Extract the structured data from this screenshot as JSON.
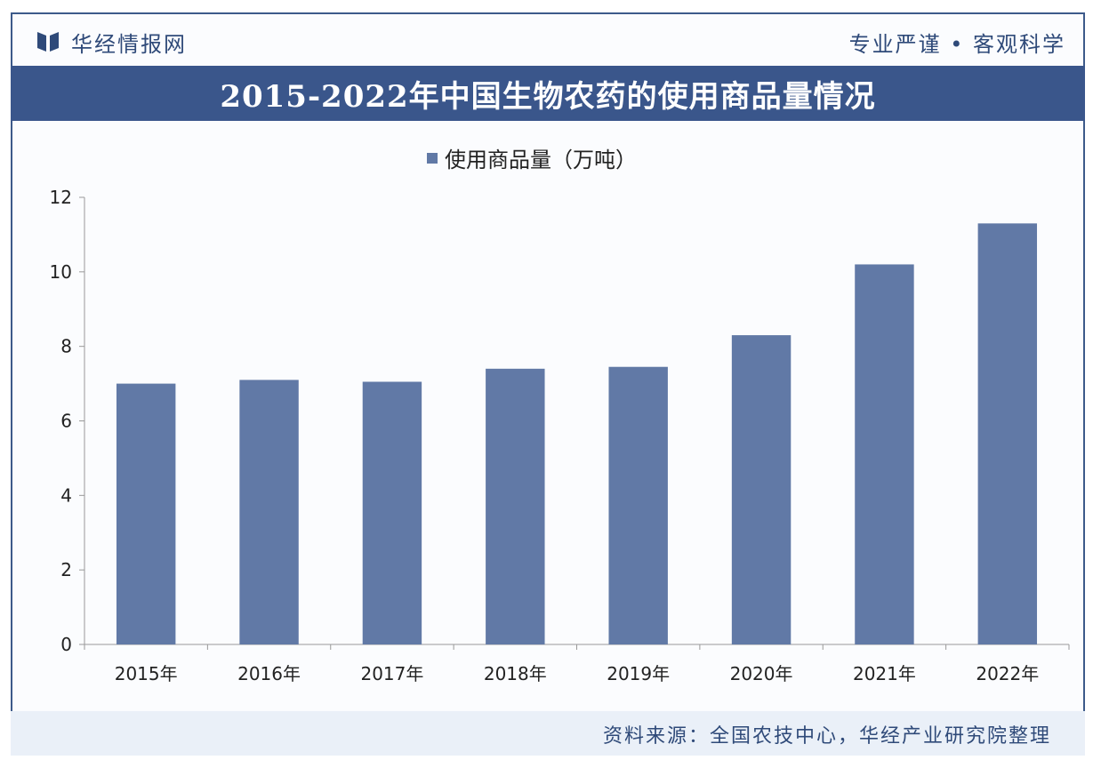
{
  "header": {
    "brand": "华经情报网",
    "slogan": "专业严谨 • 客观科学"
  },
  "title": "2015-2022年中国生物农药的使用商品量情况",
  "footer": {
    "source": "资料来源：全国农技中心，华经产业研究院整理"
  },
  "colors": {
    "accent": "#3a568b",
    "bar": "#6179a6",
    "footer_bg": "#eaf0f8"
  },
  "chart_data": {
    "type": "bar",
    "categories": [
      "2015年",
      "2016年",
      "2017年",
      "2018年",
      "2019年",
      "2020年",
      "2021年",
      "2022年"
    ],
    "series": [
      {
        "name": "使用商品量（万吨）",
        "values": [
          7.0,
          7.1,
          7.05,
          7.4,
          7.45,
          8.3,
          10.2,
          11.3
        ]
      }
    ],
    "yticks": [
      "0",
      "2",
      "4",
      "6",
      "8",
      "10",
      "12"
    ],
    "ylim": [
      0,
      12
    ],
    "grid": false,
    "legend_position": "top"
  }
}
